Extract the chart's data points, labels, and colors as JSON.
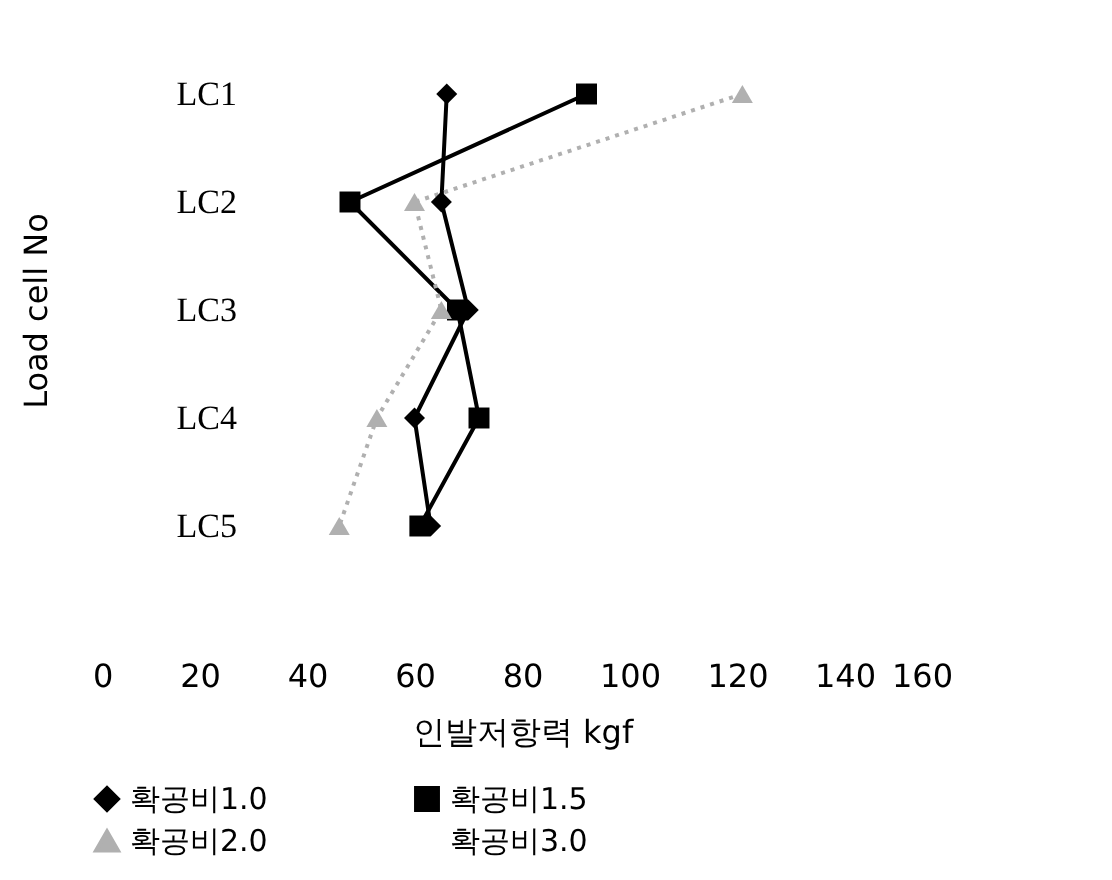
{
  "chart_data": {
    "type": "line",
    "xlabel": "인발저항력 kgf",
    "ylabel": "Load cell No",
    "categories": [
      "LC1",
      "LC2",
      "LC3",
      "LC4",
      "LC5"
    ],
    "orientation": "horizontal",
    "series": [
      {
        "name": "확공비1.0",
        "color": "#000000",
        "marker": "diamond",
        "line_style": "solid",
        "values": [
          66,
          65,
          70,
          60,
          63
        ]
      },
      {
        "name": "확공비1.5",
        "color": "#000000",
        "marker": "square",
        "line_style": "solid",
        "values": [
          92,
          48,
          68,
          72,
          61
        ]
      },
      {
        "name": "확공비2.0",
        "color": "#b0b0b0",
        "marker": "triangle",
        "line_style": "dotted",
        "values": [
          121,
          60,
          65,
          53,
          46
        ]
      },
      {
        "name": "확공비3.0",
        "marker": "none",
        "values": [
          null,
          null,
          null,
          null,
          null
        ]
      }
    ],
    "xlim": [
      0,
      160
    ],
    "xticks": [
      0,
      20,
      40,
      60,
      80,
      100,
      120,
      140,
      160
    ],
    "grid": false,
    "legend": "bottom"
  }
}
